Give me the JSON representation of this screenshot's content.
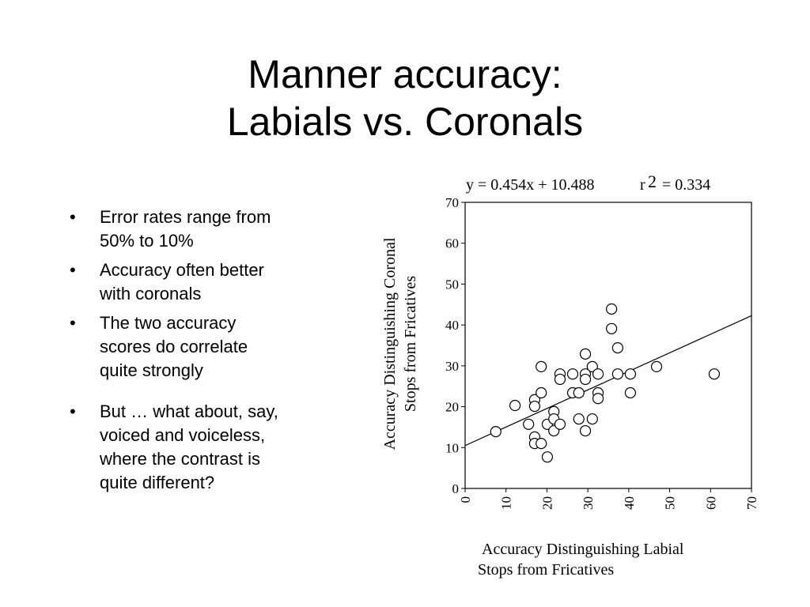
{
  "slide": {
    "title_lines": [
      "Manner accuracy:",
      "Labials vs. Coronals"
    ],
    "bullets": [
      [
        "Error rates range from",
        "50% to 10%"
      ],
      [
        "Accuracy often better",
        "with coronals"
      ],
      [
        "The two accuracy",
        "scores do correlate",
        "quite strongly"
      ],
      [
        "But … what about, say,",
        "voiced and voiceless,",
        "where the contrast is",
        "quite different?"
      ]
    ]
  },
  "chart_data": {
    "type": "scatter",
    "x_label_lines": [
      "Accuracy Distinguishing Labial",
      "Stops from Fricatives"
    ],
    "y_label_lines": [
      "Accuracy Distinguishing Coronal",
      "Stops from Fricatives"
    ],
    "fit": {
      "label": "y = 0.454x + 10.488",
      "slope": 0.454,
      "intercept": 10.488,
      "r_symbol": "r",
      "r_exponent": "2",
      "r2_text": "= 0.334"
    },
    "x": [
      7.5,
      12.2,
      15.5,
      17.0,
      17.0,
      17.0,
      17.0,
      18.6,
      18.6,
      18.6,
      20.1,
      20.1,
      21.7,
      21.7,
      21.7,
      23.2,
      23.2,
      23.2,
      26.3,
      26.3,
      27.8,
      27.8,
      29.4,
      29.4,
      29.4,
      29.4,
      31.1,
      31.1,
      32.5,
      32.5,
      32.5,
      35.8,
      35.8,
      37.3,
      37.3,
      40.4,
      40.4,
      46.8,
      60.9
    ],
    "values": [
      13.9,
      20.3,
      15.7,
      21.7,
      20.1,
      12.6,
      11.0,
      29.8,
      23.4,
      11.0,
      7.7,
      15.7,
      18.8,
      17.0,
      14.1,
      15.7,
      28.0,
      26.7,
      28.0,
      23.4,
      23.4,
      17.0,
      32.9,
      28.0,
      26.7,
      14.1,
      29.8,
      17.0,
      28.0,
      23.4,
      22.0,
      43.9,
      39.1,
      34.4,
      28.0,
      28.0,
      23.4,
      29.8,
      28.0
    ],
    "xlim": [
      0,
      70
    ],
    "ylim": [
      0,
      70
    ],
    "xticks": [
      0,
      10,
      20,
      30,
      40,
      50,
      60,
      70
    ],
    "yticks": [
      0,
      10,
      20,
      30,
      40,
      50,
      60,
      70
    ]
  }
}
